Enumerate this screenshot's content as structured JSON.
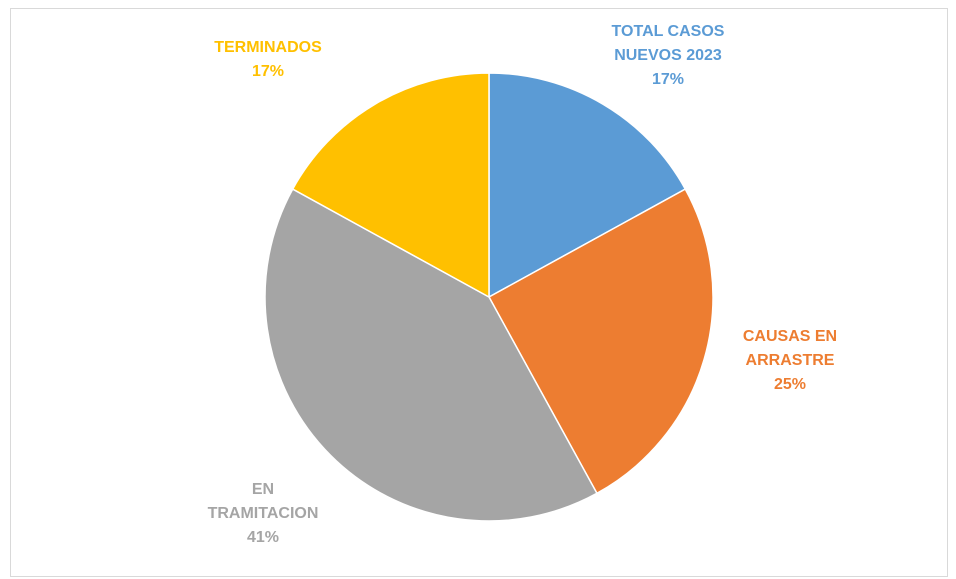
{
  "chart_data": {
    "type": "pie",
    "categories": [
      "TOTAL CASOS NUEVOS 2023",
      "CAUSAS EN ARRASTRE",
      "EN TRAMITACION",
      "TERMINADOS"
    ],
    "values": [
      17,
      25,
      41,
      17
    ],
    "value_labels": [
      "17%",
      "25%",
      "41%",
      "17%"
    ],
    "colors": [
      "#5b9bd5",
      "#ed7d31",
      "#a5a5a5",
      "#ffc000"
    ]
  }
}
